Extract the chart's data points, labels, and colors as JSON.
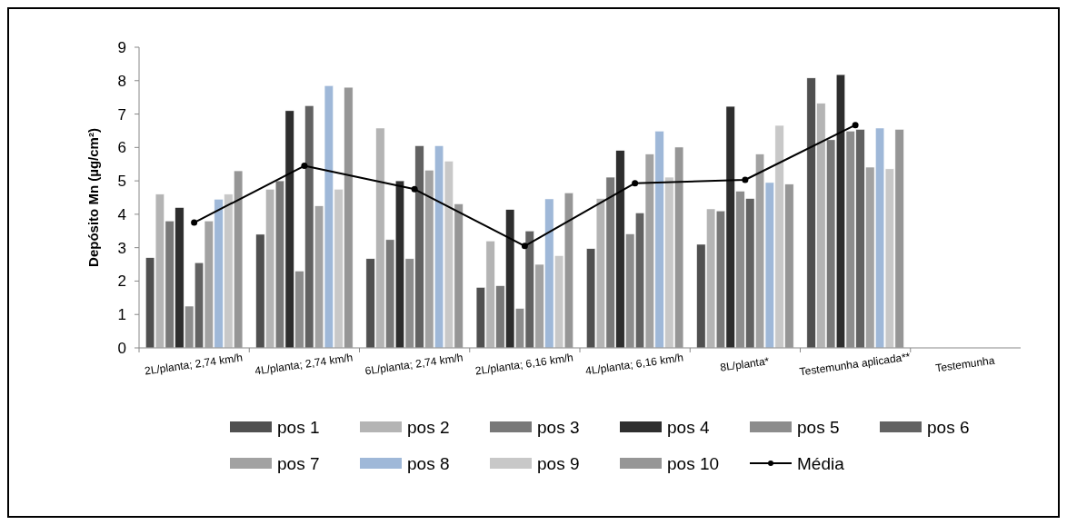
{
  "chart_data": {
    "type": "bar",
    "ylabel": "Depósito Mn (µg/cm²)",
    "categories": [
      "2L/planta; 2,74 km/h",
      "4L/planta; 2,74 km/h",
      "6L/planta; 2,74 km/h",
      "2L/planta; 6,16 km/h",
      "4L/planta; 6,16 km/h",
      "8L/planta*",
      "Testemunha aplicada**",
      "Testemunha"
    ],
    "series": [
      {
        "name": "pos 1",
        "color": "#505050",
        "values": [
          2.7,
          3.4,
          2.67,
          1.81,
          2.97,
          3.1,
          8.08,
          0
        ]
      },
      {
        "name": "pos 2",
        "color": "#b4b4b4",
        "values": [
          4.6,
          4.75,
          6.58,
          3.2,
          4.47,
          4.16,
          7.32,
          0
        ]
      },
      {
        "name": "pos 3",
        "color": "#787878",
        "values": [
          3.8,
          5.0,
          3.24,
          1.86,
          5.11,
          4.1,
          6.23,
          0
        ]
      },
      {
        "name": "pos 4",
        "color": "#2e2e2e",
        "values": [
          4.2,
          7.1,
          5.0,
          4.14,
          5.91,
          7.23,
          8.18,
          0
        ]
      },
      {
        "name": "pos 5",
        "color": "#8c8c8c",
        "values": [
          1.25,
          2.3,
          2.67,
          1.18,
          3.41,
          4.69,
          6.49,
          0
        ]
      },
      {
        "name": "pos 6",
        "color": "#626262",
        "values": [
          2.55,
          7.25,
          6.05,
          3.5,
          4.04,
          4.47,
          6.54,
          0
        ]
      },
      {
        "name": "pos 7",
        "color": "#a2a2a2",
        "values": [
          3.8,
          4.25,
          5.32,
          2.5,
          5.8,
          5.8,
          5.41,
          0
        ]
      },
      {
        "name": "pos 8",
        "color": "#9fb8d8",
        "values": [
          4.45,
          7.85,
          6.05,
          4.46,
          6.49,
          4.95,
          6.58,
          0
        ]
      },
      {
        "name": "pos 9",
        "color": "#c8c8c8",
        "values": [
          4.6,
          4.75,
          5.59,
          2.76,
          5.11,
          6.66,
          5.36,
          0
        ]
      },
      {
        "name": "pos 10",
        "color": "#969696",
        "values": [
          5.3,
          7.8,
          4.31,
          4.64,
          6.01,
          4.9,
          6.54,
          0
        ]
      },
      {
        "name": "Média",
        "type": "line",
        "color": "#000000",
        "marker": "circle",
        "values": [
          3.75,
          5.45,
          4.75,
          3.05,
          4.93,
          5.03,
          6.67,
          null
        ]
      }
    ],
    "ylim": [
      0,
      9
    ],
    "yticks": [
      0,
      1,
      2,
      3,
      4,
      5,
      6,
      7,
      8,
      9
    ],
    "grid": false,
    "legend": "bottom"
  }
}
